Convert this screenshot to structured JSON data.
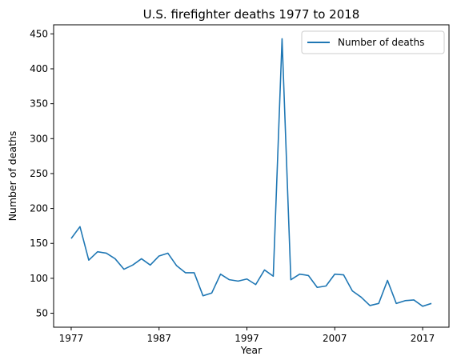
{
  "chart_data": {
    "type": "line",
    "title": "U.S. firefighter deaths 1977 to 2018",
    "xlabel": "Year",
    "ylabel": "Number of deaths",
    "x": [
      1977,
      1978,
      1979,
      1980,
      1981,
      1982,
      1983,
      1984,
      1985,
      1986,
      1987,
      1988,
      1989,
      1990,
      1991,
      1992,
      1993,
      1994,
      1995,
      1996,
      1997,
      1998,
      1999,
      2000,
      2001,
      2002,
      2003,
      2004,
      2005,
      2006,
      2007,
      2008,
      2009,
      2010,
      2011,
      2012,
      2013,
      2014,
      2015,
      2016,
      2017,
      2018
    ],
    "series": [
      {
        "name": "Number of deaths",
        "color": "#1f77b4",
        "values": [
          157,
          174,
          126,
          138,
          136,
          128,
          113,
          119,
          128,
          119,
          132,
          136,
          118,
          108,
          108,
          75,
          79,
          106,
          98,
          96,
          99,
          91,
          112,
          103,
          443,
          98,
          106,
          104,
          87,
          89,
          106,
          105,
          82,
          73,
          61,
          64,
          97,
          64,
          68,
          69,
          60,
          64
        ]
      }
    ],
    "xticks": [
      1977,
      1987,
      1997,
      2007,
      2017
    ],
    "xtick_labels": [
      "1977",
      "1987",
      "1997",
      "2007",
      "2017"
    ],
    "yticks": [
      50,
      100,
      150,
      200,
      250,
      300,
      350,
      400,
      450
    ],
    "ytick_labels": [
      "50",
      "100",
      "150",
      "200",
      "250",
      "300",
      "350",
      "400",
      "450"
    ],
    "xlim": [
      1975,
      2020
    ],
    "ylim": [
      30,
      463
    ],
    "grid": false,
    "legend_position": "top-right"
  }
}
